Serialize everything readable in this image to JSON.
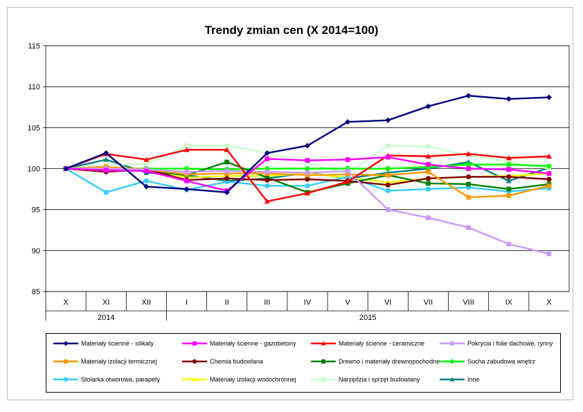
{
  "chart_data": {
    "type": "line",
    "title": "Trendy zmian cen (X 2014=100)",
    "ylim": [
      85,
      115
    ],
    "yticks": [
      "115",
      "110",
      "105",
      "100",
      "95",
      "90",
      "85"
    ],
    "categories": [
      "X",
      "XI",
      "XII",
      "I",
      "II",
      "III",
      "IV",
      "V",
      "VI",
      "VII",
      "VIII",
      "IX",
      "X"
    ],
    "year_groups": [
      {
        "label": "2014",
        "from": 0,
        "to": 2
      },
      {
        "label": "2015",
        "from": 3,
        "to": 12
      }
    ],
    "grid": true,
    "legend_position": "bottom",
    "series": [
      {
        "name": "Materiały ścienne - silikaty",
        "color": "#000080",
        "marker": "diamond",
        "values": [
          100,
          101.9,
          97.8,
          97.5,
          97.1,
          101.9,
          102.8,
          105.7,
          105.9,
          107.6,
          108.9,
          108.5,
          108.7
        ]
      },
      {
        "name": "Materiały ścienne - gazobetony",
        "color": "#ff00ff",
        "marker": "square",
        "values": [
          100,
          99.8,
          99.7,
          98.5,
          97.3,
          101.2,
          101.0,
          101.1,
          101.4,
          100.5,
          100.0,
          99.9,
          99.4
        ]
      },
      {
        "name": "Materiały ścienne - ceramiczne",
        "color": "#ff0000",
        "marker": "triangle",
        "values": [
          100,
          101.8,
          101.1,
          102.3,
          102.3,
          96.0,
          97.0,
          98.4,
          101.6,
          101.5,
          101.8,
          101.3,
          101.5
        ]
      },
      {
        "name": "Pokrycia i folie dachowe, rynny",
        "color": "#cc99ff",
        "marker": "square",
        "values": [
          100,
          100.0,
          99.9,
          99.6,
          99.7,
          99.6,
          99.5,
          99.7,
          95.0,
          94.0,
          92.8,
          90.8,
          89.6
        ]
      },
      {
        "name": "Materiały izolacji termicznej",
        "color": "#ff9900",
        "marker": "square",
        "values": [
          100,
          100.2,
          99.9,
          99.3,
          99.4,
          99.4,
          99.2,
          99.3,
          99.2,
          99.6,
          96.5,
          96.7,
          97.9
        ]
      },
      {
        "name": "Chemia budowlana",
        "color": "#800000",
        "marker": "circle",
        "values": [
          100,
          99.6,
          99.9,
          98.6,
          98.8,
          98.6,
          98.7,
          98.5,
          98.0,
          98.8,
          99.0,
          99.0,
          98.7
        ]
      },
      {
        "name": "Drewno i materiały drewnopochodne",
        "color": "#008000",
        "marker": "square",
        "values": [
          100,
          100.2,
          99.7,
          99.2,
          100.8,
          98.9,
          97.1,
          98.2,
          99.2,
          98.2,
          98.1,
          97.5,
          98.1
        ]
      },
      {
        "name": "Sucha zabudowa wnętrz",
        "color": "#00ff00",
        "marker": "circle",
        "values": [
          100,
          100.0,
          100.0,
          100.0,
          99.9,
          100.0,
          100.0,
          100.0,
          100.0,
          100.2,
          100.5,
          100.5,
          100.3
        ]
      },
      {
        "name": "Stolarka otworowa, parapety",
        "color": "#33ccff",
        "marker": "circle",
        "values": [
          100,
          97.1,
          98.5,
          97.4,
          98.4,
          97.9,
          97.9,
          99.0,
          97.3,
          97.5,
          97.7,
          97.2,
          97.6
        ]
      },
      {
        "name": "Materiały izolacji wodochronnej",
        "color": "#ffff00",
        "marker": "triangle",
        "values": [
          100,
          100.0,
          100.0,
          98.9,
          99.1,
          99.1,
          99.4,
          98.9,
          98.3,
          98.8,
          99.0,
          99.1,
          99.4
        ]
      },
      {
        "name": "Narzędzia i sprzęt budowlany",
        "color": "#ccffcc",
        "marker": "square",
        "values": [
          100,
          100.4,
          100.6,
          102.8,
          102.8,
          101.9,
          100.7,
          99.4,
          102.8,
          102.7,
          101.6,
          100.8,
          100.0
        ]
      },
      {
        "name": "Inne",
        "color": "#008080",
        "marker": "triangle",
        "values": [
          100,
          101.1,
          99.5,
          99.2,
          98.5,
          98.8,
          99.5,
          98.8,
          99.5,
          100.0,
          100.8,
          98.5,
          100.1
        ]
      }
    ]
  }
}
